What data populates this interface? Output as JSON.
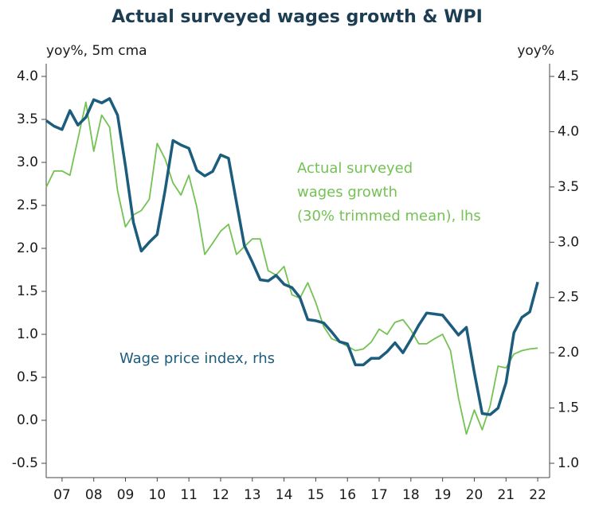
{
  "chart_data": {
    "type": "line",
    "title": "Actual surveyed wages growth & WPI",
    "y_label": "yoy%, 5m cma",
    "y2_label": "yoy%",
    "annotations": [
      {
        "lines": [
          "Actual surveyed",
          "wages growth",
          "(30% trimmed mean), lhs"
        ],
        "series": 1
      },
      {
        "lines": [
          "Wage price index, rhs"
        ],
        "series": 0
      }
    ],
    "x": [
      7,
      7.25,
      7.5,
      7.75,
      8,
      8.25,
      8.5,
      8.75,
      9,
      9.25,
      9.5,
      9.75,
      10,
      10.25,
      10.5,
      10.75,
      11,
      11.25,
      11.5,
      11.75,
      12,
      12.25,
      12.5,
      12.75,
      13,
      13.25,
      13.5,
      13.75,
      14,
      14.25,
      14.5,
      14.75,
      15,
      15.25,
      15.5,
      15.75,
      16,
      16.25,
      16.5,
      16.75,
      17,
      17.25,
      17.5,
      17.75,
      18,
      18.25,
      18.5,
      18.75,
      19,
      19.25,
      19.5,
      19.75,
      20,
      20.25,
      20.5,
      20.75,
      21,
      21.25,
      21.5,
      21.75,
      22,
      22.25,
      22.5
    ],
    "series": [
      {
        "name": "Wage price index, rhs",
        "color": "#1c5c7c",
        "axis": "y2",
        "values": [
          4.1,
          4.05,
          4.02,
          4.19,
          4.06,
          4.13,
          4.29,
          4.26,
          4.3,
          4.15,
          3.69,
          3.18,
          2.92,
          3.0,
          3.07,
          3.47,
          3.92,
          3.88,
          3.85,
          3.65,
          3.6,
          3.64,
          3.79,
          3.76,
          3.36,
          2.97,
          2.82,
          2.66,
          2.65,
          2.7,
          2.62,
          2.59,
          2.5,
          2.3,
          2.29,
          2.27,
          2.19,
          2.1,
          2.08,
          1.89,
          1.89,
          1.95,
          1.95,
          2.01,
          2.09,
          2.0,
          2.12,
          2.25,
          2.36,
          2.35,
          2.34,
          2.25,
          2.16,
          2.23,
          1.82,
          1.45,
          1.44,
          1.5,
          1.73,
          2.18,
          2.32,
          2.37,
          2.64
        ]
      },
      {
        "name": "Actual surveyed wages growth (30% trimmed mean), lhs",
        "color": "#74c254",
        "values": [
          2.71,
          2.9,
          2.9,
          2.85,
          3.27,
          3.7,
          3.13,
          3.55,
          3.41,
          2.67,
          2.25,
          2.39,
          2.44,
          2.57,
          3.22,
          3.04,
          2.76,
          2.62,
          2.85,
          2.48,
          1.93,
          2.06,
          2.2,
          2.28,
          1.93,
          2.02,
          2.11,
          2.11,
          1.74,
          1.69,
          1.79,
          1.46,
          1.42,
          1.6,
          1.37,
          1.09,
          0.95,
          0.91,
          0.86,
          0.81,
          0.83,
          0.91,
          1.06,
          1.0,
          1.14,
          1.17,
          1.05,
          0.89,
          0.89,
          0.95,
          1.0,
          0.81,
          0.26,
          -0.16,
          0.12,
          -0.11,
          0.17,
          0.63,
          0.61,
          0.77,
          0.81,
          0.83,
          0.84
        ]
      }
    ],
    "xlim": [
      6.95,
      22.95
    ],
    "xticks": [
      {
        "value": 7.5,
        "label": "07"
      },
      {
        "value": 8.5,
        "label": "08"
      },
      {
        "value": 9.5,
        "label": "09"
      },
      {
        "value": 10.5,
        "label": "10"
      },
      {
        "value": 11.5,
        "label": "11"
      },
      {
        "value": 12.5,
        "label": "12"
      },
      {
        "value": 13.5,
        "label": "13"
      },
      {
        "value": 14.5,
        "label": "14"
      },
      {
        "value": 15.5,
        "label": "15"
      },
      {
        "value": 16.5,
        "label": "16"
      },
      {
        "value": 17.5,
        "label": "17"
      },
      {
        "value": 18.5,
        "label": "18"
      },
      {
        "value": 19.5,
        "label": "19"
      },
      {
        "value": 20.5,
        "label": "20"
      },
      {
        "value": 21.5,
        "label": "21"
      },
      {
        "value": 22.5,
        "label": "22"
      }
    ],
    "ylim": [
      -0.5,
      4.0
    ],
    "yticks": [
      -0.5,
      {
        "value": 0,
        "label": "0.0"
      },
      0.5,
      {
        "value": 1,
        "label": "1.0"
      },
      1.5,
      {
        "value": 2,
        "label": "2.0"
      },
      2.5,
      {
        "value": 3,
        "label": "3.0"
      },
      3.5,
      {
        "value": 4,
        "label": "4.0"
      }
    ],
    "y2lim": [
      1.0,
      4.5
    ],
    "y2ticks": [
      {
        "value": 1,
        "label": "1.0"
      },
      1.5,
      {
        "value": 2,
        "label": "2.0"
      },
      2.5,
      {
        "value": 3,
        "label": "3.0"
      },
      3.5,
      {
        "value": 4,
        "label": "4.0"
      },
      4.5
    ]
  }
}
